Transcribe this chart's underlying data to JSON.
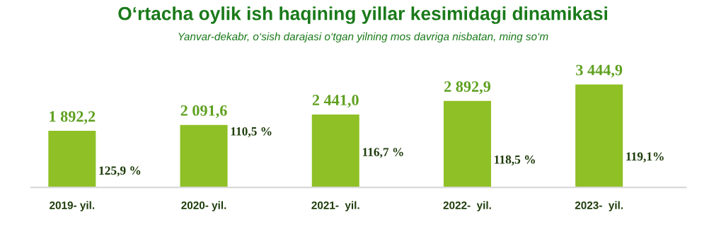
{
  "chart_data": {
    "type": "bar",
    "title": "O‘rtacha oylik ish haqining yillar kesimidagi dinamikasi",
    "subtitle": "Yanvar-dekabr, o‘sish darajasi o‘tgan yilning mos davriga nisbatan, ming so‘m",
    "categories": [
      "2019- yil.",
      "2020- yil.",
      "2021-  yil.",
      "2022-  yil.",
      "2023-  yil."
    ],
    "values": [
      1892.2,
      2091.6,
      2441.0,
      2892.9,
      3444.9
    ],
    "value_labels": [
      "1 892,2",
      "2 091,6",
      "2 441,0",
      "2 892,9",
      "3 444,9"
    ],
    "color": "#8fc026",
    "tick_labels": "x",
    "annotations": [
      "125,9 %",
      "110,5 %",
      "116,7 %",
      "118,5 %",
      "119,1%"
    ]
  }
}
